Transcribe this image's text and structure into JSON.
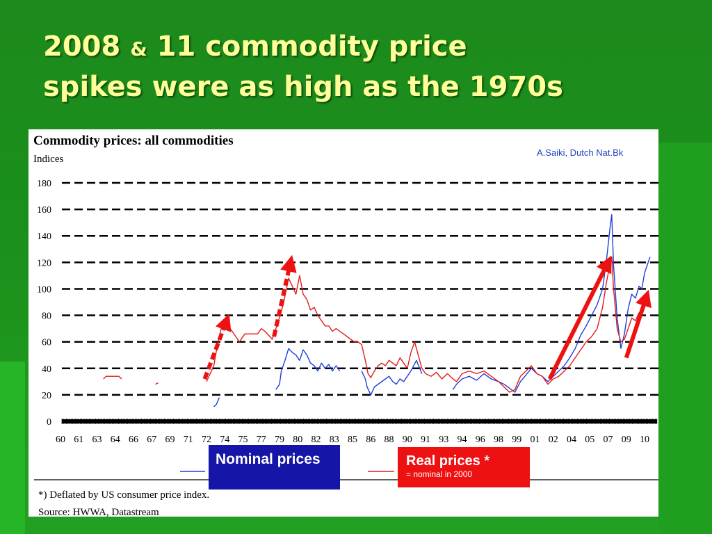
{
  "slide": {
    "title_part1": "2008",
    "title_amp": "&",
    "title_part2": "11 commodity price",
    "title_line2": "spikes were as high as the 1970s"
  },
  "credit": "A.Saiki, Dutch Nat.Bk",
  "legend": {
    "nominal_label": "Nominal prices",
    "real_label": "Real prices *",
    "real_note": "= nominal in 2000"
  },
  "footnote": "*) Deflated by US consumer price index.",
  "source": "Source: HWWA, Datastream",
  "colors": {
    "nominal": "#1f3fd6",
    "real": "#e31b1b",
    "arrow": "#ee1111",
    "title": "#ffff99",
    "background": "#1a8f1a"
  },
  "chart_data": {
    "type": "line",
    "title": "Commodity prices: all commodities",
    "ylabel": "Indices",
    "ylim": [
      0,
      180
    ],
    "yticks": [
      0,
      20,
      40,
      60,
      80,
      100,
      120,
      140,
      160,
      180
    ],
    "grid": "dashed horizontal",
    "xticks": [
      "60",
      "61",
      "63",
      "64",
      "66",
      "67",
      "69",
      "71",
      "72",
      "74",
      "75",
      "77",
      "79",
      "80",
      "82",
      "83",
      "85",
      "86",
      "88",
      "90",
      "91",
      "93",
      "94",
      "96",
      "98",
      "99",
      "01",
      "02",
      "04",
      "05",
      "07",
      "09",
      "10"
    ],
    "series": [
      {
        "name": "Nominal prices",
        "color": "#1f3fd6",
        "points": [
          [
            8.4,
            11
          ],
          [
            8.55,
            13
          ],
          [
            8.7,
            18
          ],
          [
            11.8,
            24
          ],
          [
            12.0,
            28
          ],
          [
            12.1,
            38
          ],
          [
            12.3,
            46
          ],
          [
            12.5,
            55
          ],
          [
            12.7,
            52
          ],
          [
            12.9,
            50
          ],
          [
            13.1,
            46
          ],
          [
            13.3,
            54
          ],
          [
            13.5,
            50
          ],
          [
            13.7,
            44
          ],
          [
            13.9,
            42
          ],
          [
            14.1,
            38
          ],
          [
            14.3,
            44
          ],
          [
            14.5,
            40
          ],
          [
            14.7,
            43
          ],
          [
            14.9,
            38
          ],
          [
            15.1,
            42
          ],
          [
            15.3,
            38
          ],
          [
            16.5,
            38
          ],
          [
            16.7,
            32
          ],
          [
            16.8,
            26
          ],
          [
            16.9,
            23
          ],
          [
            17.0,
            20
          ],
          [
            17.2,
            26
          ],
          [
            17.8,
            32
          ],
          [
            18.0,
            34
          ],
          [
            18.2,
            30
          ],
          [
            18.4,
            28
          ],
          [
            18.6,
            32
          ],
          [
            18.8,
            30
          ],
          [
            19.2,
            38
          ],
          [
            19.5,
            46
          ],
          [
            19.8,
            36
          ],
          [
            21.5,
            24
          ],
          [
            21.7,
            28
          ],
          [
            22.0,
            32
          ],
          [
            22.4,
            34
          ],
          [
            22.8,
            31
          ],
          [
            23.2,
            36
          ],
          [
            23.6,
            32
          ],
          [
            24.0,
            30
          ],
          [
            24.3,
            28
          ],
          [
            24.6,
            25
          ],
          [
            24.9,
            22
          ],
          [
            25.2,
            30
          ],
          [
            25.5,
            35
          ],
          [
            25.8,
            40
          ],
          [
            26.1,
            36
          ],
          [
            26.4,
            34
          ],
          [
            26.7,
            30
          ],
          [
            27.0,
            34
          ],
          [
            27.3,
            38
          ],
          [
            27.6,
            42
          ],
          [
            27.9,
            48
          ],
          [
            28.2,
            55
          ],
          [
            28.5,
            65
          ],
          [
            28.8,
            72
          ],
          [
            29.1,
            80
          ],
          [
            29.4,
            88
          ],
          [
            29.7,
            100
          ],
          [
            29.9,
            120
          ],
          [
            30.1,
            145
          ],
          [
            30.2,
            156
          ],
          [
            30.3,
            118
          ],
          [
            30.5,
            78
          ],
          [
            30.7,
            55
          ],
          [
            30.9,
            66
          ],
          [
            31.1,
            85
          ],
          [
            31.3,
            96
          ],
          [
            31.5,
            93
          ],
          [
            31.7,
            102
          ],
          [
            31.85,
            100
          ],
          [
            32.0,
            112
          ],
          [
            32.15,
            118
          ],
          [
            32.3,
            124
          ]
        ]
      },
      {
        "name": "Real prices *",
        "color": "#e31b1b",
        "points": [
          [
            2.35,
            32
          ],
          [
            2.5,
            34
          ],
          [
            3.2,
            34
          ],
          [
            3.35,
            32
          ],
          [
            5.2,
            28
          ],
          [
            5.35,
            29
          ],
          [
            8.0,
            30
          ],
          [
            8.2,
            36
          ],
          [
            8.4,
            42
          ],
          [
            8.6,
            58
          ],
          [
            8.8,
            70
          ],
          [
            9.0,
            75
          ],
          [
            9.2,
            72
          ],
          [
            9.4,
            68
          ],
          [
            9.6,
            64
          ],
          [
            9.8,
            60
          ],
          [
            10.1,
            66
          ],
          [
            10.8,
            66
          ],
          [
            11.0,
            70
          ],
          [
            11.2,
            68
          ],
          [
            11.6,
            62
          ],
          [
            11.9,
            74
          ],
          [
            12.2,
            88
          ],
          [
            12.5,
            108
          ],
          [
            12.7,
            102
          ],
          [
            12.9,
            96
          ],
          [
            13.1,
            110
          ],
          [
            13.3,
            96
          ],
          [
            13.5,
            92
          ],
          [
            13.7,
            84
          ],
          [
            13.9,
            86
          ],
          [
            14.1,
            80
          ],
          [
            14.3,
            76
          ],
          [
            14.5,
            72
          ],
          [
            14.7,
            72
          ],
          [
            14.9,
            68
          ],
          [
            15.1,
            70
          ],
          [
            15.3,
            68
          ],
          [
            15.5,
            66
          ],
          [
            15.7,
            64
          ],
          [
            15.9,
            62
          ],
          [
            16.1,
            60
          ],
          [
            16.3,
            60
          ],
          [
            16.5,
            58
          ],
          [
            16.7,
            46
          ],
          [
            16.85,
            36
          ],
          [
            17.0,
            33
          ],
          [
            17.2,
            38
          ],
          [
            17.4,
            42
          ],
          [
            17.6,
            44
          ],
          [
            17.8,
            42
          ],
          [
            18.0,
            46
          ],
          [
            18.2,
            44
          ],
          [
            18.4,
            42
          ],
          [
            18.6,
            48
          ],
          [
            18.8,
            44
          ],
          [
            19.0,
            40
          ],
          [
            19.2,
            52
          ],
          [
            19.4,
            60
          ],
          [
            19.6,
            50
          ],
          [
            19.8,
            40
          ],
          [
            20.0,
            36
          ],
          [
            20.3,
            34
          ],
          [
            20.6,
            37
          ],
          [
            20.9,
            32
          ],
          [
            21.2,
            36
          ],
          [
            21.5,
            32
          ],
          [
            21.7,
            30
          ],
          [
            22.0,
            36
          ],
          [
            22.4,
            38
          ],
          [
            22.8,
            36
          ],
          [
            23.2,
            38
          ],
          [
            23.6,
            34
          ],
          [
            24.0,
            30
          ],
          [
            24.3,
            26
          ],
          [
            24.6,
            22
          ],
          [
            24.9,
            24
          ],
          [
            25.2,
            34
          ],
          [
            25.5,
            38
          ],
          [
            25.8,
            42
          ],
          [
            26.1,
            36
          ],
          [
            26.4,
            34
          ],
          [
            26.7,
            28
          ],
          [
            27.0,
            32
          ],
          [
            27.3,
            34
          ],
          [
            27.6,
            38
          ],
          [
            27.9,
            42
          ],
          [
            28.2,
            48
          ],
          [
            28.5,
            54
          ],
          [
            28.8,
            60
          ],
          [
            29.1,
            64
          ],
          [
            29.4,
            70
          ],
          [
            29.7,
            86
          ],
          [
            29.9,
            104
          ],
          [
            30.1,
            118
          ],
          [
            30.2,
            124
          ],
          [
            30.3,
            100
          ],
          [
            30.5,
            70
          ],
          [
            30.7,
            60
          ],
          [
            30.9,
            62
          ],
          [
            31.1,
            70
          ],
          [
            31.3,
            78
          ],
          [
            31.5,
            76
          ],
          [
            31.7,
            82
          ],
          [
            31.85,
            80
          ],
          [
            32.0,
            86
          ],
          [
            32.15,
            90
          ],
          [
            32.3,
            88
          ]
        ]
      }
    ],
    "arrows": [
      {
        "from": [
          7.9,
          32
        ],
        "to": [
          9.1,
          76
        ],
        "style": "dashed"
      },
      {
        "from": [
          11.7,
          64
        ],
        "to": [
          12.6,
          120
        ],
        "style": "dashed"
      },
      {
        "from": [
          26.8,
          32
        ],
        "to": [
          30.0,
          120
        ],
        "style": "solid"
      },
      {
        "from": [
          31.0,
          48
        ],
        "to": [
          32.1,
          94
        ],
        "style": "solid"
      }
    ]
  }
}
